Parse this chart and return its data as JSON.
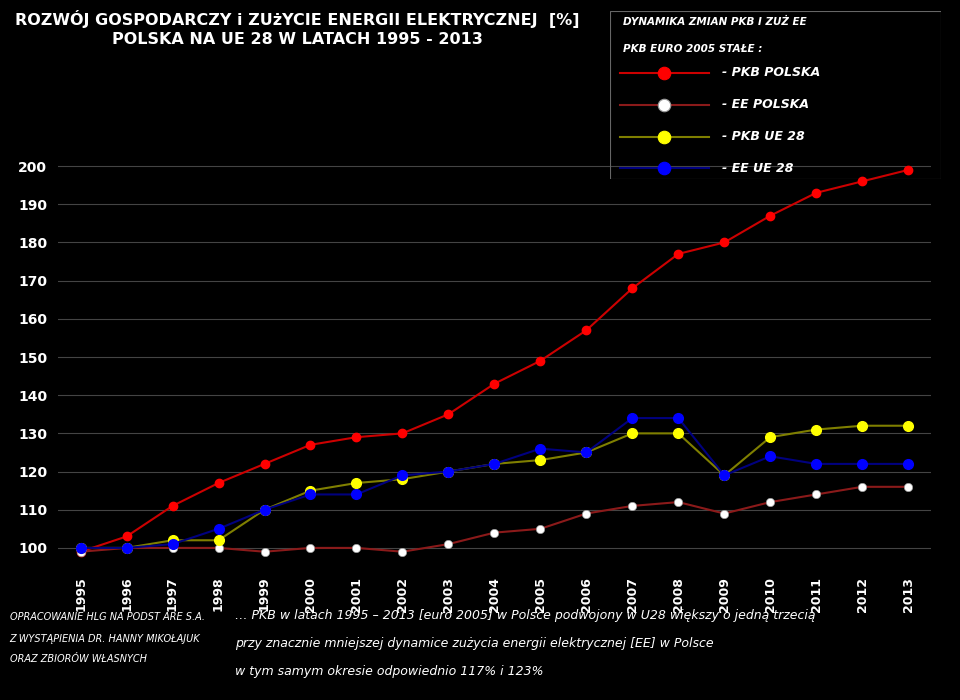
{
  "title_line1": "ROZWÓJ GOSPODARCZY i ZUżYCIE ENERGII ELEKTRYCZNEJ  [%]",
  "title_line2": "POLSKA NA UE 28 W LATACH 1995 - 2013",
  "legend_title1": "DYNAMIKA ZMIAN PKB I ZUŻ EE",
  "legend_title2": "PKB EURO 2005 STAŁE :",
  "years": [
    1995,
    1996,
    1997,
    1998,
    1999,
    2000,
    2001,
    2002,
    2003,
    2004,
    2005,
    2006,
    2007,
    2008,
    2009,
    2010,
    2011,
    2012,
    2013
  ],
  "pkb_polska": [
    99,
    103,
    111,
    117,
    122,
    127,
    129,
    130,
    135,
    143,
    149,
    157,
    168,
    177,
    180,
    187,
    193,
    196,
    199
  ],
  "ee_polska": [
    99,
    100,
    100,
    100,
    99,
    100,
    100,
    99,
    101,
    104,
    105,
    109,
    111,
    112,
    109,
    112,
    114,
    116,
    116
  ],
  "pkb_ue28": [
    100,
    100,
    102,
    102,
    110,
    115,
    117,
    118,
    120,
    122,
    123,
    125,
    130,
    130,
    119,
    129,
    131,
    132,
    132
  ],
  "ee_ue28": [
    100,
    100,
    101,
    105,
    110,
    114,
    114,
    119,
    120,
    122,
    126,
    125,
    134,
    134,
    119,
    124,
    122,
    122,
    122
  ],
  "pkb_polska_line_color": "#cc0000",
  "ee_polska_line_color": "#8b1a1a",
  "pkb_ue28_line_color": "#7f7f00",
  "ee_ue28_line_color": "#00007f",
  "pkb_polska_marker": "#ff0000",
  "ee_polska_marker": "#ffffff",
  "pkb_ue28_marker": "#ffff00",
  "ee_ue28_marker": "#0000ff",
  "background_color": "#000000",
  "text_color": "#ffffff",
  "grid_color": "#444444",
  "ylim_min": 95,
  "ylim_max": 205,
  "yticks": [
    100,
    110,
    120,
    130,
    140,
    150,
    160,
    170,
    180,
    190,
    200
  ],
  "footer_left_line1": "OPRACOWANIE HLG NA PODST ARE S.A.",
  "footer_left_line2": "Z WYSTĄPIENIA DR. HANNY MIKOŁAJUK",
  "footer_left_line3": "ORAZ ZBIORÓW WŁASNYCH",
  "footer_right_line1": "… PKB w latach 1995 – 2013 [euro 2005] w Polsce podwojony w U28 większy o jedną trzecią",
  "footer_right_line2": "przy znacznie mniejszej dynamice zużycia energii elektrycznej [EE] w Polsce",
  "footer_right_line3": "w tym samym okresie odpowiednio 117% i 123%"
}
